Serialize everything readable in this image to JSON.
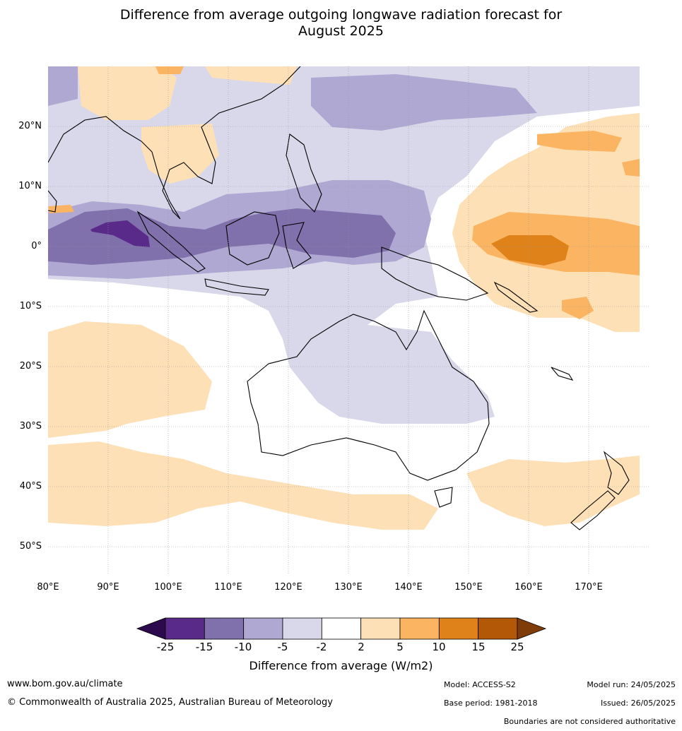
{
  "title_line1": "Difference from average outgoing longwave radiation forecast for",
  "title_line2": "August 2025",
  "lat_labels": [
    "20°N",
    "10°N",
    "0°",
    "10°S",
    "20°S",
    "30°S",
    "40°S",
    "50°S"
  ],
  "lon_labels": [
    "80°E",
    "90°E",
    "100°E",
    "110°E",
    "120°E",
    "130°E",
    "140°E",
    "150°E",
    "160°E",
    "170°E"
  ],
  "legend": {
    "title": "Difference from average (W/m2)",
    "ticks": [
      "-25",
      "-15",
      "-10",
      "-5",
      "-2",
      "2",
      "5",
      "10",
      "15",
      "25"
    ],
    "colors": [
      "#2d0a4e",
      "#5a2a8a",
      "#8070ab",
      "#aea8d2",
      "#d8d8ea",
      "#ffffff",
      "#fde0b6",
      "#fbb461",
      "#e0821a",
      "#b35806",
      "#7f3b08"
    ]
  },
  "footer": {
    "website": "www.bom.gov.au/climate",
    "copyright": "© Commonwealth of Australia 2025, Australian Bureau of Meteorology",
    "model": "Model: ACCESS-S2",
    "base_period": "Base period: 1981-2018",
    "model_run": "Model run: 24/05/2025",
    "issued": "Issued: 26/05/2025",
    "boundaries_note": "Boundaries are not considered authoritative"
  }
}
